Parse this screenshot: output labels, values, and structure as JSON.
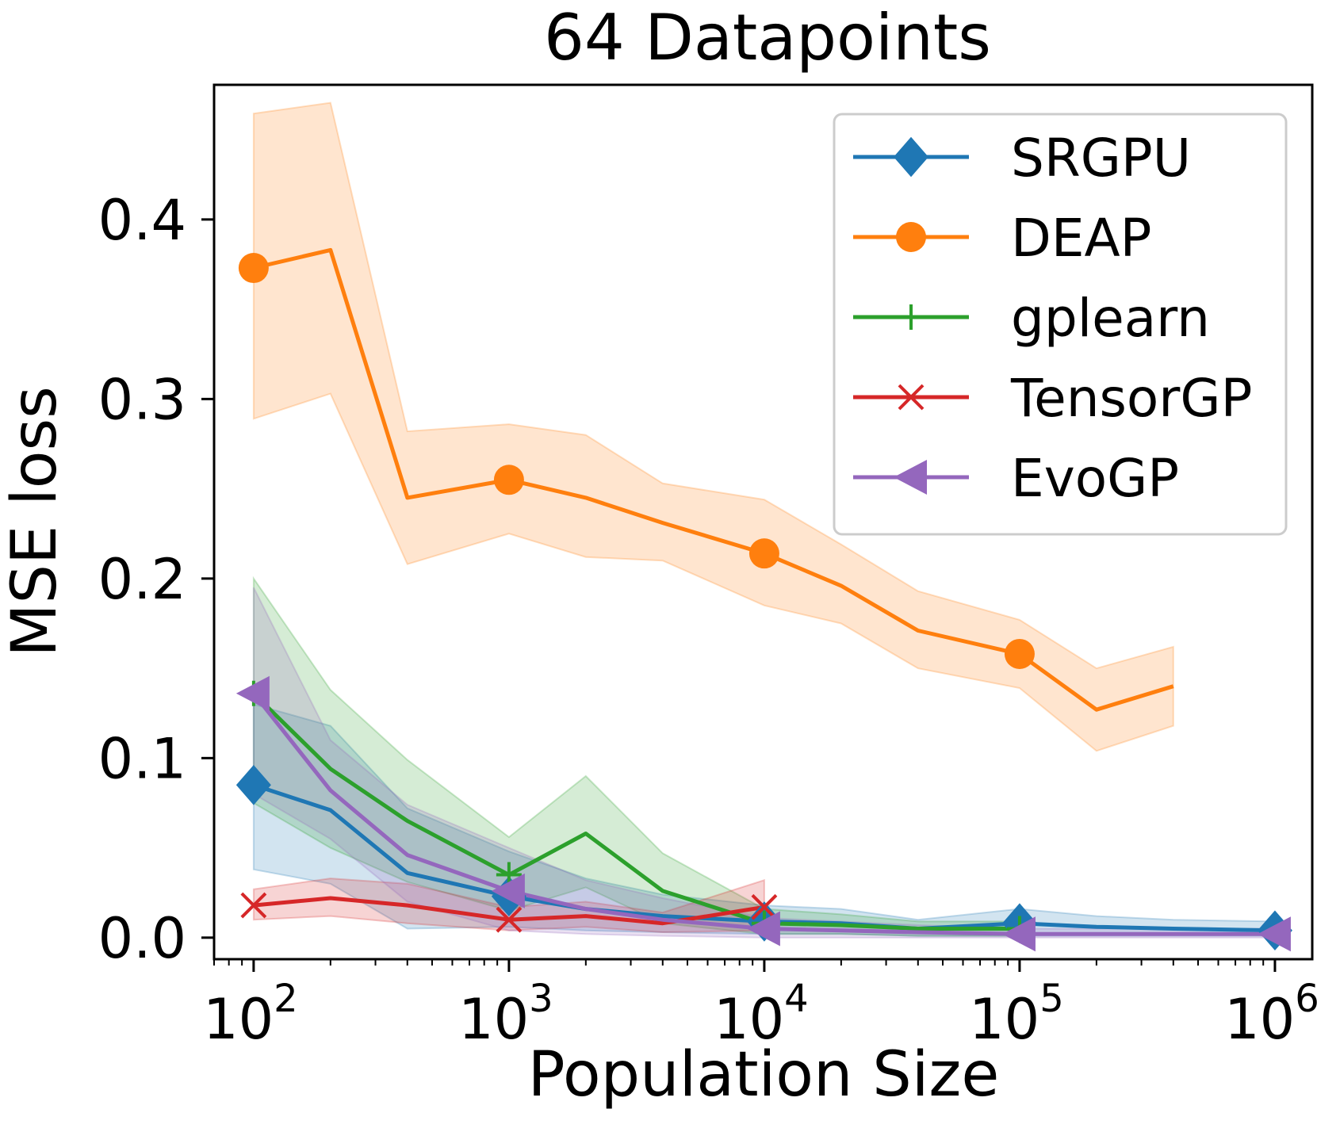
{
  "chart_data": {
    "type": "line",
    "title": "64 Datapoints",
    "xlabel": "Population Size",
    "ylabel": "MSE loss",
    "xscale": "log",
    "xlim": [
      70,
      1400000
    ],
    "ylim": [
      -0.012,
      0.475
    ],
    "x_ticks": [
      {
        "value": 100,
        "base": "10",
        "exp": "2"
      },
      {
        "value": 1000,
        "base": "10",
        "exp": "3"
      },
      {
        "value": 10000,
        "base": "10",
        "exp": "4"
      },
      {
        "value": 100000,
        "base": "10",
        "exp": "5"
      },
      {
        "value": 1000000,
        "base": "10",
        "exp": "6"
      }
    ],
    "y_ticks": [
      {
        "value": 0.0,
        "label": "0.0"
      },
      {
        "value": 0.1,
        "label": "0.1"
      },
      {
        "value": 0.2,
        "label": "0.2"
      },
      {
        "value": 0.3,
        "label": "0.3"
      },
      {
        "value": 0.4,
        "label": "0.4"
      }
    ],
    "legend_position": "top-right",
    "grid": false,
    "series": [
      {
        "name": "SRGPU",
        "color": "#1f77b4",
        "marker": "diamond",
        "x": [
          100,
          200,
          400,
          1000,
          2000,
          4000,
          10000,
          20000,
          40000,
          100000,
          200000,
          400000,
          1000000
        ],
        "y": [
          0.085,
          0.071,
          0.036,
          0.023,
          0.016,
          0.012,
          0.009,
          0.008,
          0.005,
          0.008,
          0.006,
          0.005,
          0.004
        ],
        "lower": [
          0.038,
          0.03,
          0.005,
          0.006,
          0.004,
          0.003,
          0.002,
          0.002,
          0.001,
          0.001,
          0.001,
          0.001,
          0.001
        ],
        "upper": [
          0.13,
          0.118,
          0.072,
          0.048,
          0.033,
          0.024,
          0.018,
          0.016,
          0.01,
          0.016,
          0.012,
          0.01,
          0.009
        ],
        "marker_x": [
          100,
          1000,
          10000,
          100000,
          1000000
        ],
        "marker_y": [
          0.085,
          0.023,
          0.009,
          0.008,
          0.004
        ]
      },
      {
        "name": "DEAP",
        "color": "#ff7f0e",
        "marker": "circle",
        "x": [
          100,
          200,
          400,
          1000,
          2000,
          4000,
          10000,
          20000,
          40000,
          100000,
          200000,
          400000
        ],
        "y": [
          0.373,
          0.383,
          0.245,
          0.255,
          0.245,
          0.231,
          0.214,
          0.196,
          0.171,
          0.158,
          0.127,
          0.14
        ],
        "lower": [
          0.289,
          0.303,
          0.208,
          0.225,
          0.212,
          0.21,
          0.185,
          0.175,
          0.15,
          0.139,
          0.104,
          0.118
        ],
        "upper": [
          0.459,
          0.465,
          0.282,
          0.286,
          0.28,
          0.253,
          0.244,
          0.219,
          0.193,
          0.177,
          0.15,
          0.162
        ],
        "marker_x": [
          100,
          1000,
          10000,
          100000
        ],
        "marker_y": [
          0.373,
          0.255,
          0.214,
          0.158
        ]
      },
      {
        "name": "gplearn",
        "color": "#2ca02c",
        "marker": "plus",
        "x": [
          100,
          200,
          400,
          1000,
          2000,
          4000,
          10000,
          20000,
          40000,
          100000
        ],
        "y": [
          0.136,
          0.094,
          0.065,
          0.035,
          0.058,
          0.026,
          0.008,
          0.007,
          0.005,
          0.005
        ],
        "lower": [
          0.075,
          0.05,
          0.031,
          0.015,
          0.028,
          0.008,
          0.002,
          0.002,
          0.001,
          0.001
        ],
        "upper": [
          0.2,
          0.138,
          0.099,
          0.056,
          0.09,
          0.047,
          0.016,
          0.013,
          0.009,
          0.009
        ],
        "marker_x": [
          100,
          1000,
          10000,
          100000
        ],
        "marker_y": [
          0.136,
          0.035,
          0.008,
          0.005
        ]
      },
      {
        "name": "TensorGP",
        "color": "#d62728",
        "marker": "x",
        "x": [
          100,
          200,
          400,
          1000,
          2000,
          4000,
          10000
        ],
        "y": [
          0.018,
          0.022,
          0.018,
          0.01,
          0.012,
          0.008,
          0.017
        ],
        "lower": [
          0.01,
          0.012,
          0.008,
          0.004,
          0.006,
          0.003,
          0.004
        ],
        "upper": [
          0.027,
          0.033,
          0.03,
          0.017,
          0.02,
          0.014,
          0.032
        ],
        "marker_x": [
          100,
          1000,
          10000
        ],
        "marker_y": [
          0.018,
          0.01,
          0.017
        ]
      },
      {
        "name": "EvoGP",
        "color": "#9467bd",
        "marker": "triangle-left",
        "x": [
          100,
          200,
          400,
          1000,
          2000,
          4000,
          10000,
          20000,
          40000,
          100000,
          200000,
          400000,
          1000000
        ],
        "y": [
          0.136,
          0.082,
          0.046,
          0.026,
          0.016,
          0.01,
          0.005,
          0.004,
          0.003,
          0.002,
          0.002,
          0.002,
          0.002
        ],
        "lower": [
          0.08,
          0.055,
          0.02,
          0.004,
          0.002,
          0.001,
          0.0,
          0.0,
          0.0,
          0.0,
          0.0,
          0.0,
          0.0
        ],
        "upper": [
          0.195,
          0.11,
          0.074,
          0.05,
          0.032,
          0.022,
          0.011,
          0.009,
          0.007,
          0.005,
          0.005,
          0.005,
          0.005
        ],
        "marker_x": [
          100,
          1000,
          10000,
          100000,
          1000000
        ],
        "marker_y": [
          0.136,
          0.026,
          0.005,
          0.002,
          0.002
        ]
      }
    ]
  }
}
